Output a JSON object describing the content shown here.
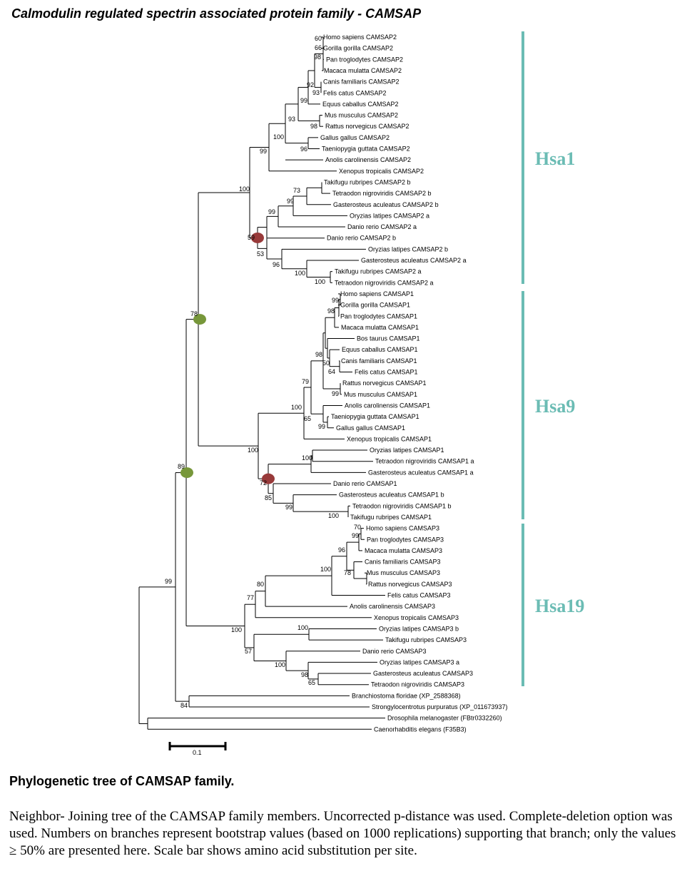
{
  "title": "Calmodulin regulated spectrin associated protein family - CAMSAP",
  "caption": {
    "heading": "Phylogenetic tree of CAMSAP family.",
    "text": "Neighbor- Joining  tree of the CAMSAP family members. Uncorrected p-distance was used. Complete-deletion option was used. Numbers on branches represent bootstrap values (based on 1000 replications) supporting that branch; only the values ≥ 50% are presented here. Scale bar shows amino acid substitution per site."
  },
  "scale_bar": {
    "label": "0.1"
  },
  "colors": {
    "clade_bar": "#6bbcb4",
    "clade_label": "#6bbcb4",
    "duplication_node_green": "#77973a",
    "duplication_node_red": "#983a3a"
  },
  "clades": [
    {
      "label": "Hsa1"
    },
    {
      "label": "Hsa9"
    },
    {
      "label": "Hsa19"
    }
  ],
  "leaves": [
    "Homo sapiens CAMSAP2",
    "Gorilla gorilla CAMSAP2",
    "Pan troglodytes CAMSAP2",
    "Macaca mulatta CAMSAP2",
    "Canis familiaris CAMSAP2",
    "Felis catus CAMSAP2",
    "Equus caballus CAMSAP2",
    "Mus musculus CAMSAP2",
    "Rattus norvegicus CAMSAP2",
    "Gallus gallus CAMSAP2",
    "Taeniopygia guttata CAMSAP2",
    "Anolis carolinensis CAMSAP2",
    "Xenopus tropicalis CAMSAP2",
    "Takifugu rubripes CAMSAP2 b",
    "Tetraodon nigroviridis CAMSAP2 b",
    "Gasterosteus aculeatus CAMSAP2 b",
    "Oryzias latipes CAMSAP2 a",
    "Danio rerio CAMSAP2 a",
    "Danio rerio CAMSAP2 b",
    "Oryzias latipes CAMSAP2 b",
    "Gasterosteus aculeatus CAMSAP2 a",
    "Takifugu rubripes CAMSAP2 a",
    "Tetraodon nigroviridis CAMSAP2 a",
    "Homo sapiens CAMSAP1",
    "Gorilla gorilla CAMSAP1",
    "Pan troglodytes CAMSAP1",
    "Macaca mulatta CAMSAP1",
    "Bos taurus CAMSAP1",
    "Equus caballus CAMSAP1",
    "Canis familiaris CAMSAP1",
    "Felis catus CAMSAP1",
    "Rattus norvegicus CAMSAP1",
    "Mus musculus CAMSAP1",
    "Anolis carolinensis CAMSAP1",
    "Taeniopygia guttata CAMSAP1",
    "Gallus gallus CAMSAP1",
    "Xenopus tropicalis CAMSAP1",
    "Oryzias latipes CAMSAP1",
    "Tetraodon nigroviridis CAMSAP1 a",
    "Gasterosteus aculeatus CAMSAP1 a",
    "Danio rerio CAMSAP1",
    "Gasterosteus aculeatus CAMSAP1 b",
    "Tetraodon nigroviridis CAMSAP1 b",
    "Takifugu rubripes CAMSAP1",
    "Homo sapiens CAMSAP3",
    "Pan troglodytes CAMSAP3",
    "Macaca mulatta CAMSAP3",
    "Canis familiaris CAMSAP3",
    "Mus musculus CAMSAP3",
    "Rattus norvegicus CAMSAP3",
    "Felis catus CAMSAP3",
    "Anolis carolinensis CAMSAP3",
    "Xenopus tropicalis CAMSAP3",
    "Oryzias latipes CAMSAP3 b",
    "Takifugu rubripes CAMSAP3",
    "Danio rerio CAMSAP3",
    "Oryzias latipes CAMSAP3 a",
    "Gasterosteus aculeatus CAMSAP3",
    "Tetraodon nigroviridis CAMSAP3",
    "Branchiostoma floridae (XP_2588368)",
    "Strongylocentrotus purpuratus (XP_011673937)",
    "Drosophila melanogaster (FBtr0332260)",
    "Caenorhabditis elegans (F35B3)"
  ],
  "bootstrap_values": [
    "60",
    "66",
    "98",
    "92",
    "93",
    "99",
    "98",
    "93",
    "96",
    "100",
    "99",
    "100",
    "73",
    "99",
    "99",
    "59",
    "53",
    "96",
    "100",
    "100",
    "78",
    "99",
    "98",
    "50",
    "64",
    "98",
    "99",
    "79",
    "100",
    "65",
    "99",
    "100",
    "100",
    "72",
    "85",
    "99",
    "100",
    "89",
    "70",
    "99",
    "96",
    "78",
    "100",
    "80",
    "77",
    "100",
    "100",
    "57",
    "100",
    "98",
    "65",
    "99",
    "84"
  ]
}
